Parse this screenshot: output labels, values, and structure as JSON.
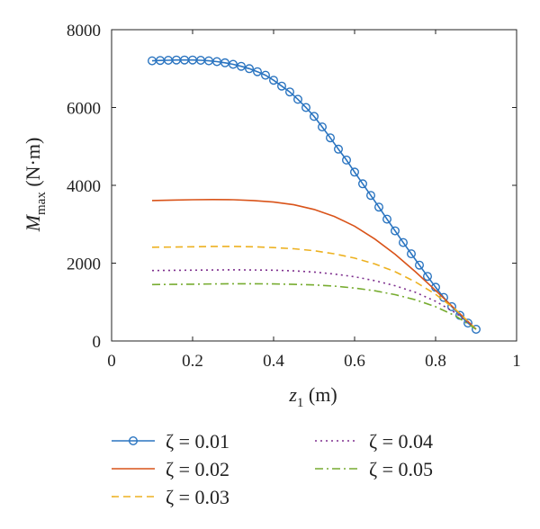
{
  "chart_data": {
    "type": "line",
    "title": "",
    "xlabel": {
      "var": "z",
      "sub": "1",
      "unit": " (m)"
    },
    "ylabel": {
      "var": "M",
      "sub": "max",
      "unit": " (N·m)"
    },
    "xlim": [
      0,
      1
    ],
    "ylim": [
      0,
      8000
    ],
    "xticks": [
      0,
      0.2,
      0.4,
      0.6,
      0.8,
      1
    ],
    "xtick_labels": [
      "0",
      "0.2",
      "0.4",
      "0.6",
      "0.8",
      "1"
    ],
    "yticks": [
      0,
      2000,
      4000,
      6000,
      8000
    ],
    "ytick_labels": [
      "0",
      "2000",
      "4000",
      "6000",
      "8000"
    ],
    "grid": false,
    "legend_position": "bottom",
    "series": [
      {
        "name": "ζ = 0.01",
        "color": "#2a74c0",
        "style": "solid",
        "marker": "circle",
        "x": [
          0.1,
          0.12,
          0.14,
          0.16,
          0.18,
          0.2,
          0.22,
          0.24,
          0.26,
          0.28,
          0.3,
          0.32,
          0.34,
          0.36,
          0.38,
          0.4,
          0.42,
          0.44,
          0.46,
          0.48,
          0.5,
          0.52,
          0.54,
          0.56,
          0.58,
          0.6,
          0.62,
          0.64,
          0.66,
          0.68,
          0.7,
          0.72,
          0.74,
          0.76,
          0.78,
          0.8,
          0.82,
          0.84,
          0.86,
          0.88,
          0.9
        ],
        "y": [
          7200,
          7210,
          7215,
          7220,
          7220,
          7220,
          7215,
          7200,
          7180,
          7150,
          7110,
          7060,
          7000,
          6920,
          6830,
          6700,
          6550,
          6400,
          6210,
          6000,
          5770,
          5500,
          5220,
          4930,
          4650,
          4340,
          4040,
          3740,
          3440,
          3130,
          2830,
          2530,
          2240,
          1950,
          1660,
          1380,
          1120,
          880,
          660,
          460,
          300
        ]
      },
      {
        "name": "ζ = 0.02",
        "color": "#d95319",
        "style": "solid",
        "marker": "none",
        "x": [
          0.1,
          0.15,
          0.2,
          0.25,
          0.3,
          0.35,
          0.4,
          0.45,
          0.5,
          0.55,
          0.6,
          0.65,
          0.7,
          0.75,
          0.8,
          0.85,
          0.9
        ],
        "y": [
          3610,
          3620,
          3630,
          3635,
          3630,
          3610,
          3570,
          3500,
          3380,
          3200,
          2950,
          2620,
          2230,
          1780,
          1300,
          800,
          300
        ]
      },
      {
        "name": "ζ = 0.03",
        "color": "#edb120",
        "style": "dashed",
        "marker": "none",
        "x": [
          0.1,
          0.15,
          0.2,
          0.25,
          0.3,
          0.35,
          0.4,
          0.45,
          0.5,
          0.55,
          0.6,
          0.65,
          0.7,
          0.75,
          0.8,
          0.85,
          0.9
        ],
        "y": [
          2410,
          2415,
          2420,
          2430,
          2430,
          2420,
          2400,
          2370,
          2320,
          2240,
          2130,
          1980,
          1780,
          1520,
          1200,
          800,
          300
        ]
      },
      {
        "name": "ζ = 0.04",
        "color": "#7e2f8e",
        "style": "dotted",
        "marker": "none",
        "x": [
          0.1,
          0.15,
          0.2,
          0.25,
          0.3,
          0.35,
          0.4,
          0.45,
          0.5,
          0.55,
          0.6,
          0.65,
          0.7,
          0.75,
          0.8,
          0.85,
          0.9
        ],
        "y": [
          1810,
          1815,
          1820,
          1825,
          1830,
          1825,
          1820,
          1800,
          1770,
          1720,
          1650,
          1550,
          1420,
          1250,
          1020,
          720,
          300
        ]
      },
      {
        "name": "ζ = 0.05",
        "color": "#77ac30",
        "style": "dashdot",
        "marker": "none",
        "x": [
          0.1,
          0.15,
          0.2,
          0.25,
          0.3,
          0.35,
          0.4,
          0.45,
          0.5,
          0.55,
          0.6,
          0.65,
          0.7,
          0.75,
          0.8,
          0.85,
          0.9
        ],
        "y": [
          1450,
          1455,
          1460,
          1465,
          1470,
          1470,
          1465,
          1455,
          1440,
          1410,
          1360,
          1290,
          1190,
          1060,
          880,
          640,
          300
        ]
      }
    ]
  }
}
